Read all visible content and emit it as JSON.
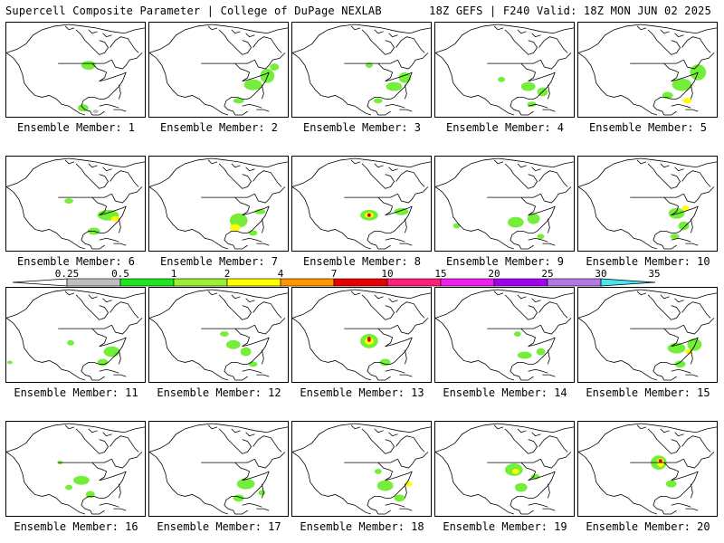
{
  "header": {
    "title": "Supercell Composite Parameter | College of DuPage NEXLAB",
    "run_info": "18Z GEFS | F240 Valid: 18Z MON JUN 02 2025"
  },
  "legend": {
    "colors": [
      "#bebebe",
      "#1ee61e",
      "#9bf032",
      "#ffff00",
      "#ff9600",
      "#e60000",
      "#ff1e78",
      "#f01ef0",
      "#a000f0",
      "#b478e6",
      "#46e6f0"
    ],
    "ticks": [
      "0.25",
      "0.5",
      "1",
      "2",
      "4",
      "7",
      "10",
      "15",
      "20",
      "25",
      "30",
      "35"
    ]
  },
  "members": [
    {
      "label": "Ensemble Member: 1"
    },
    {
      "label": "Ensemble Member: 2"
    },
    {
      "label": "Ensemble Member: 3"
    },
    {
      "label": "Ensemble Member: 4"
    },
    {
      "label": "Ensemble Member: 5"
    },
    {
      "label": "Ensemble Member: 6"
    },
    {
      "label": "Ensemble Member: 7"
    },
    {
      "label": "Ensemble Member: 8"
    },
    {
      "label": "Ensemble Member: 9"
    },
    {
      "label": "Ensemble Member: 10"
    },
    {
      "label": "Ensemble Member: 11"
    },
    {
      "label": "Ensemble Member: 12"
    },
    {
      "label": "Ensemble Member: 13"
    },
    {
      "label": "Ensemble Member: 14"
    },
    {
      "label": "Ensemble Member: 15"
    },
    {
      "label": "Ensemble Member: 16"
    },
    {
      "label": "Ensemble Member: 17"
    },
    {
      "label": "Ensemble Member: 18"
    },
    {
      "label": "Ensemble Member: 19"
    },
    {
      "label": "Ensemble Member: 20"
    }
  ]
}
